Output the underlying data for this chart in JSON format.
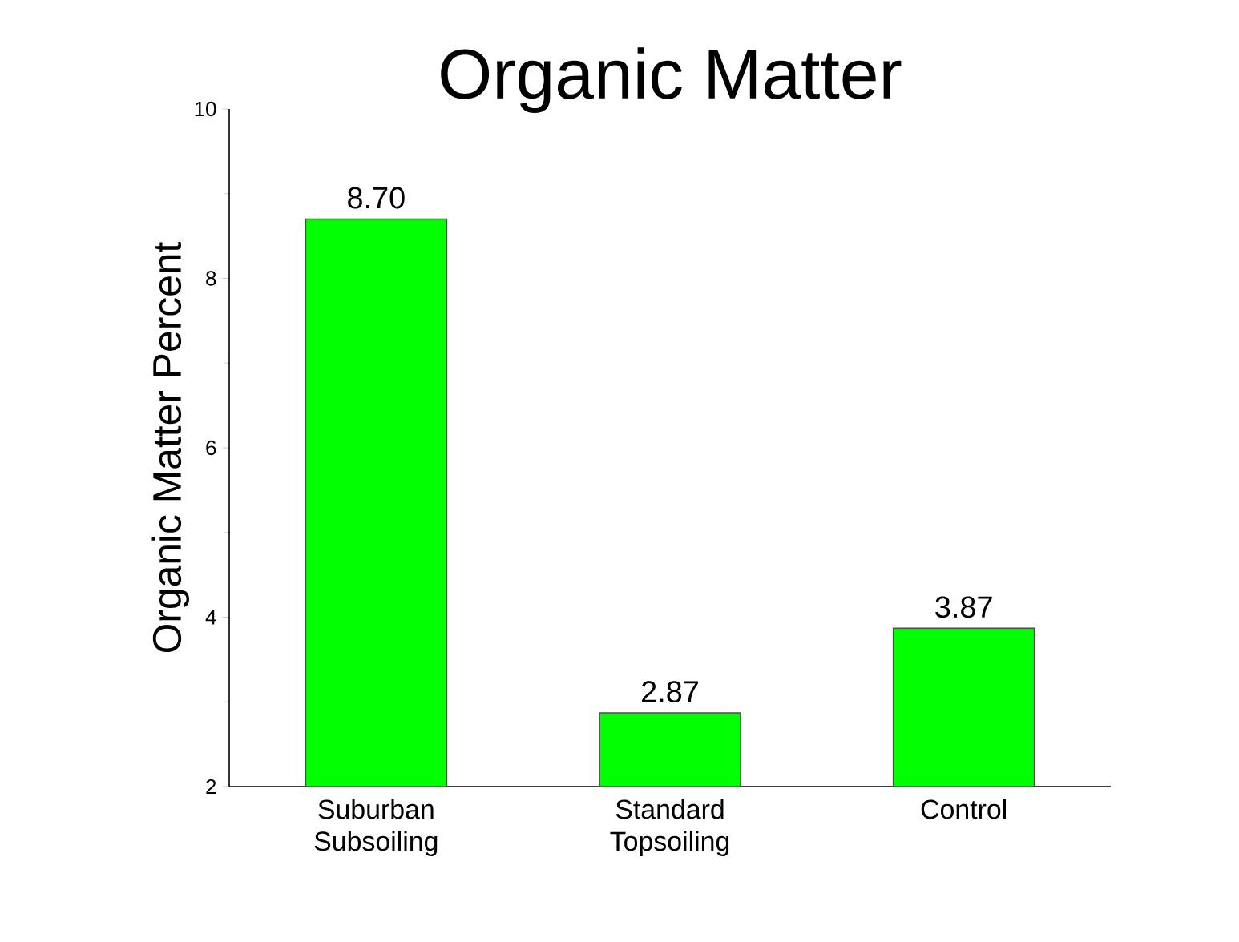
{
  "chart_data": {
    "type": "bar",
    "title": "Organic Matter",
    "ylabel": "Organic Matter Percent",
    "categories": [
      "Suburban Subsoiling",
      "Standard Topsoiling",
      "Control"
    ],
    "values": [
      8.7,
      2.87,
      3.87
    ],
    "color": "#00ff00",
    "value_labels": [
      "8.70",
      "2.87",
      "3.87"
    ],
    "ylim": [
      2,
      10
    ],
    "yticks": [
      2,
      4,
      6,
      8,
      10
    ],
    "grid": false
  }
}
